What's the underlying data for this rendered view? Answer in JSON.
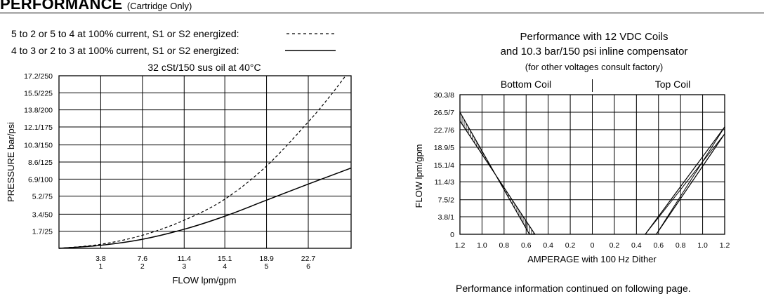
{
  "header": {
    "title": "PERFORMANCE",
    "subtitle": "(Cartridge Only)"
  },
  "footer_note": "Performance information continued on following page.",
  "chart_data": [
    {
      "type": "line",
      "legend": [
        {
          "label": "5 to 2 or 5 to 4 at 100% current, S1 or S2 energized:",
          "style": "dashed"
        },
        {
          "label": "4 to 3 or 2 to 3 at 100% current, S1 or S2 energized:",
          "style": "solid"
        }
      ],
      "legend_placement": "top",
      "title": "32 cSt/150 sus oil at 40°C",
      "xlabel": "FLOW lpm/gpm",
      "ylabel": "PRESSURE bar/psi",
      "xlim": [
        0,
        26.6
      ],
      "ylim": [
        0,
        17.2
      ],
      "x_ticks": [
        {
          "value": 3.8,
          "label": "3.8",
          "label2": "1"
        },
        {
          "value": 7.6,
          "label": "7.6",
          "label2": "2"
        },
        {
          "value": 11.4,
          "label": "11.4",
          "label2": "3"
        },
        {
          "value": 15.1,
          "label": "15.1",
          "label2": "4"
        },
        {
          "value": 18.9,
          "label": "18.9",
          "label2": "5"
        },
        {
          "value": 22.7,
          "label": "22.7",
          "label2": "6"
        }
      ],
      "y_ticks": [
        {
          "value": 1.7,
          "label": "1.7/25"
        },
        {
          "value": 3.4,
          "label": "3.4/50"
        },
        {
          "value": 5.2,
          "label": "5.2/75"
        },
        {
          "value": 6.9,
          "label": "6.9/100"
        },
        {
          "value": 8.6,
          "label": "8.6/125"
        },
        {
          "value": 10.3,
          "label": "10.3/150"
        },
        {
          "value": 12.1,
          "label": "12.1/175"
        },
        {
          "value": 13.8,
          "label": "13.8/200"
        },
        {
          "value": 15.5,
          "label": "15.5/225"
        },
        {
          "value": 17.2,
          "label": "17.2/250"
        }
      ],
      "grid": true,
      "series": [
        {
          "style": "dashed",
          "x": [
            0,
            3.8,
            7.6,
            11.4,
            15.1,
            18.9,
            22.7,
            24.7,
            26.1
          ],
          "y": [
            0,
            0.4,
            1.3,
            2.8,
            4.9,
            8.2,
            12.6,
            15.2,
            17.2
          ]
        },
        {
          "style": "solid",
          "x": [
            0,
            3.8,
            7.6,
            11.4,
            15.1,
            18.9,
            22.7,
            26.6
          ],
          "y": [
            0,
            0.3,
            0.9,
            1.9,
            3.2,
            4.8,
            6.4,
            8.0
          ]
        }
      ]
    },
    {
      "type": "line",
      "title_lines": [
        "Performance with 12 VDC Coils",
        "and 10.3 bar/150 psi inline compensator",
        "(for other voltages consult factory)"
      ],
      "section_labels": [
        "Bottom Coil",
        "Top Coil"
      ],
      "xlabel": "AMPERAGE with 100 Hz Dither",
      "ylabel": "FLOW lpm/gpm",
      "xlim": [
        -1.2,
        1.2
      ],
      "ylim": [
        0,
        30.3
      ],
      "x_ticks": [
        {
          "value": -1.2,
          "label": "1.2"
        },
        {
          "value": -1.0,
          "label": "1.0"
        },
        {
          "value": -0.8,
          "label": "0.8"
        },
        {
          "value": -0.6,
          "label": "0.6"
        },
        {
          "value": -0.4,
          "label": "0.4"
        },
        {
          "value": -0.2,
          "label": "0.2"
        },
        {
          "value": 0,
          "label": "0"
        },
        {
          "value": 0.2,
          "label": "0.2"
        },
        {
          "value": 0.4,
          "label": "0.4"
        },
        {
          "value": 0.6,
          "label": "0.6"
        },
        {
          "value": 0.8,
          "label": "0.8"
        },
        {
          "value": 1.0,
          "label": "1.0"
        },
        {
          "value": 1.2,
          "label": "1.2"
        }
      ],
      "y_ticks": [
        {
          "value": 0,
          "label": "0"
        },
        {
          "value": 3.8,
          "label": "3.8/1"
        },
        {
          "value": 7.5,
          "label": "7.5/2"
        },
        {
          "value": 11.4,
          "label": "11.4/3"
        },
        {
          "value": 15.1,
          "label": "15.1/4"
        },
        {
          "value": 18.9,
          "label": "18.9/5"
        },
        {
          "value": 22.7,
          "label": "22.7/6"
        },
        {
          "value": 26.5,
          "label": "26.5/7"
        },
        {
          "value": 30.3,
          "label": "30.3/8"
        }
      ],
      "grid": true,
      "bands": [
        {
          "name": "bottom-coil",
          "fill": "hatch-vertical",
          "edge_a": {
            "x": [
              -1.2,
              -0.57
            ],
            "y": [
              26.5,
              0
            ]
          },
          "edge_b": {
            "x": [
              -1.2,
              -0.52
            ],
            "y": [
              24.6,
              0
            ]
          }
        },
        {
          "name": "top-coil",
          "fill": "none",
          "edge_a": {
            "x": [
              0.48,
              1.2
            ],
            "y": [
              0,
              23.3
            ]
          },
          "edge_b": {
            "x": [
              0.58,
              1.2
            ],
            "y": [
              0,
              21.8
            ]
          }
        }
      ]
    }
  ]
}
